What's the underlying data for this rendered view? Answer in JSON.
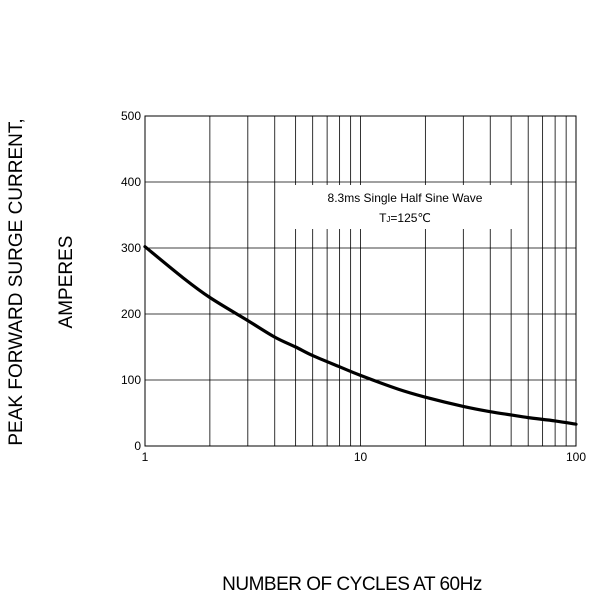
{
  "chart_data": {
    "type": "line",
    "x_scale": "log",
    "xlim": [
      1,
      100
    ],
    "ylim": [
      0,
      500
    ],
    "xlabel": "NUMBER  OF  CYCLES AT 60Hz",
    "ylabel_lines": [
      "PEAK FORWARD SURGE CURRENT,",
      "AMPERES"
    ],
    "x_ticks": [
      1,
      10,
      100
    ],
    "x_tick_labels": [
      "1",
      "10",
      "100"
    ],
    "y_ticks": [
      0,
      100,
      200,
      300,
      400,
      500
    ],
    "y_tick_labels": [
      "0",
      "100",
      "200",
      "300",
      "400",
      "500"
    ],
    "grid": true,
    "annotation": {
      "line1": "8.3ms Single Half Sine Wave",
      "line2_main": "T",
      "line2_sub": "J",
      "line2_rest": "=125℃"
    },
    "series": [
      {
        "x": [
          1,
          1.5,
          2,
          3,
          4,
          5,
          6,
          8,
          10,
          15,
          20,
          30,
          40,
          50,
          60,
          80,
          100
        ],
        "values": [
          302,
          255,
          225,
          190,
          165,
          150,
          137,
          120,
          107,
          86,
          74,
          60,
          52,
          47,
          43,
          38,
          33
        ]
      }
    ]
  }
}
